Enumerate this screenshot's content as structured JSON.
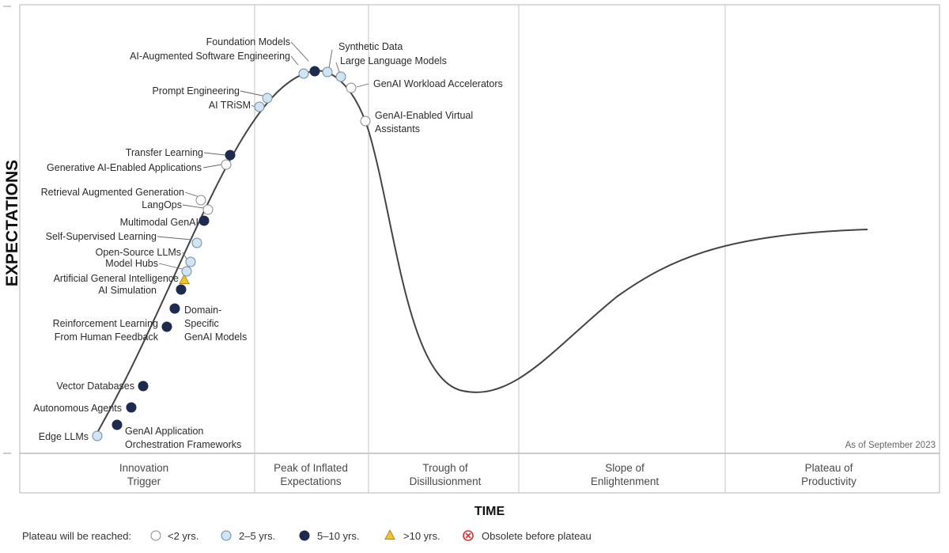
{
  "chart_data": {
    "type": "hype-cycle",
    "y_axis_label": "EXPECTATIONS",
    "x_axis_label": "TIME",
    "as_of": "As of September 2023",
    "phases": [
      {
        "lines": [
          "Innovation",
          "Trigger"
        ]
      },
      {
        "lines": [
          "Peak of Inflated",
          "Expectations"
        ]
      },
      {
        "lines": [
          "Trough of",
          "Disillusionment"
        ]
      },
      {
        "lines": [
          "Slope of",
          "Enlightenment"
        ]
      },
      {
        "lines": [
          "Plateau of",
          "Productivity"
        ]
      }
    ],
    "categories": {
      "lt2": {
        "label": "<2 yrs.",
        "fill": "#ffffff",
        "stroke": "#888888",
        "shape": "circle"
      },
      "2to5": {
        "label": "2–5 yrs.",
        "fill": "#cfe5f4",
        "stroke": "#6e8aa0",
        "shape": "circle"
      },
      "5to10": {
        "label": "5–10 yrs.",
        "fill": "#1d2b4f",
        "stroke": "#1d2b4f",
        "shape": "circle"
      },
      "gt10": {
        "label": ">10 yrs.",
        "fill": "#f2c230",
        "stroke": "#b88a00",
        "shape": "triangle"
      },
      "obsolete": {
        "label": "Obsolete before plateau",
        "fill": "#ffffff",
        "stroke": "#d8312f",
        "shape": "x-circle"
      }
    },
    "legend": {
      "prefix": "Plateau will be reached:",
      "order": [
        "lt2",
        "2to5",
        "5to10",
        "gt10",
        "obsolete"
      ]
    },
    "technologies": [
      {
        "lines": [
          "Edge LLMs"
        ],
        "category": "2to5"
      },
      {
        "lines": [
          "GenAI Application",
          "Orchestration Frameworks"
        ],
        "category": "5to10"
      },
      {
        "lines": [
          "Autonomous Agents"
        ],
        "category": "5to10"
      },
      {
        "lines": [
          "Vector Databases"
        ],
        "category": "5to10"
      },
      {
        "lines": [
          "Reinforcement Learning",
          "From Human Feedback"
        ],
        "category": "5to10"
      },
      {
        "lines": [
          "Domain-",
          "Specific",
          "GenAI Models"
        ],
        "category": "5to10"
      },
      {
        "lines": [
          "AI Simulation"
        ],
        "category": "5to10"
      },
      {
        "lines": [
          "Artificial General Intelligence"
        ],
        "category": "gt10"
      },
      {
        "lines": [
          "Model Hubs"
        ],
        "category": "2to5"
      },
      {
        "lines": [
          "Open-Source LLMs"
        ],
        "category": "2to5"
      },
      {
        "lines": [
          "Self-Supervised Learning"
        ],
        "category": "2to5"
      },
      {
        "lines": [
          "Multimodal GenAI"
        ],
        "category": "5to10"
      },
      {
        "lines": [
          "LangOps"
        ],
        "category": "lt2"
      },
      {
        "lines": [
          "Retrieval Augmented Generation"
        ],
        "category": "lt2"
      },
      {
        "lines": [
          "Generative AI-Enabled Applications"
        ],
        "category": "lt2"
      },
      {
        "lines": [
          "Transfer Learning"
        ],
        "category": "5to10"
      },
      {
        "lines": [
          "AI TRiSM"
        ],
        "category": "2to5"
      },
      {
        "lines": [
          "Prompt Engineering"
        ],
        "category": "2to5"
      },
      {
        "lines": [
          "AI-Augmented Software Engineering"
        ],
        "category": "2to5"
      },
      {
        "lines": [
          "Foundation Models"
        ],
        "category": "5to10"
      },
      {
        "lines": [
          "Synthetic Data"
        ],
        "category": "2to5"
      },
      {
        "lines": [
          "Large Language Models"
        ],
        "category": "2to5"
      },
      {
        "lines": [
          "GenAI Workload Accelerators"
        ],
        "category": "lt2"
      },
      {
        "lines": [
          "GenAI-Enabled Virtual",
          "Assistants"
        ],
        "category": "lt2"
      }
    ]
  }
}
